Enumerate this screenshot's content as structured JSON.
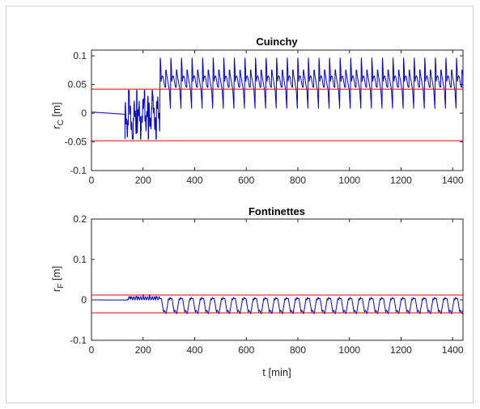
{
  "chart_data": [
    {
      "type": "line",
      "title": "Cuinchy",
      "ylabel": "r",
      "ylabel_sub": "C",
      "ylabel_unit": " [m]",
      "xlabel": "",
      "xlim": [
        0,
        1440
      ],
      "ylim": [
        -0.1,
        0.11
      ],
      "xticks": [
        0,
        200,
        400,
        600,
        800,
        1000,
        1200,
        1400
      ],
      "yticks": [
        -0.1,
        -0.05,
        0,
        0.05,
        0.1
      ],
      "ytick_labels": [
        "-0.1",
        "-0.05",
        "0",
        "0.05",
        "0.1"
      ],
      "thresholds": [
        0.042,
        -0.048
      ],
      "series": [
        {
          "color": "#0000cc",
          "pattern": {
            "type": "cuinchy",
            "pre_end": 265,
            "period": 41,
            "start": 265,
            "high": 0.1,
            "plateau": 0.055,
            "low": 0.008
          }
        }
      ]
    },
    {
      "type": "line",
      "title": "Fontinettes",
      "ylabel": "r",
      "ylabel_sub": "F",
      "ylabel_unit": " [m]",
      "xlabel": "t [min]",
      "xlim": [
        0,
        1440
      ],
      "ylim": [
        -0.1,
        0.2
      ],
      "xticks": [
        0,
        200,
        400,
        600,
        800,
        1000,
        1200,
        1400
      ],
      "yticks": [
        -0.1,
        0,
        0.1,
        0.2
      ],
      "ytick_labels": [
        "-0.1",
        "0",
        "0.1",
        "0.2"
      ],
      "thresholds": [
        0.012,
        -0.032
      ],
      "series": [
        {
          "color": "#0000cc",
          "pattern": {
            "type": "fontinettes",
            "pre_end": 265,
            "period": 41,
            "start": 265,
            "high": 0.003,
            "low": -0.03
          }
        }
      ]
    }
  ],
  "colors": {
    "series": "#0000cc",
    "threshold": "#e8000b",
    "axis": "#262626"
  }
}
